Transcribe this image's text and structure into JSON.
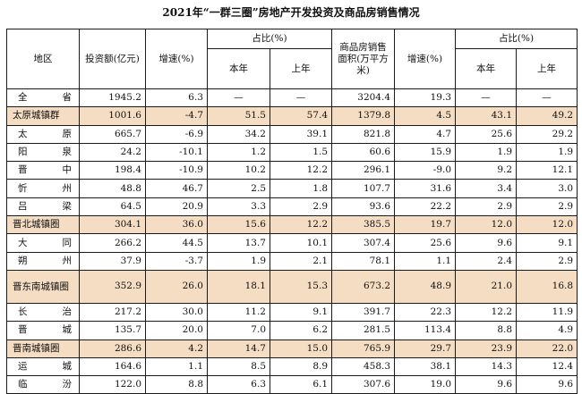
{
  "title": "2021年“一群三圈”房地产开发投资及商品房销售情况",
  "headers": {
    "region": "地区",
    "investment": "投资额(亿元)",
    "growth": "增速(%)",
    "share": "占比(%)",
    "this_year": "本年",
    "last_year": "上年",
    "sales_area": "商品房销售面积(万平方米)",
    "sales_growth": "增速(%)",
    "share2": "占比(%)",
    "this_year2": "本年",
    "last_year2": "上年"
  },
  "colors": {
    "cluster_highlight": "#f5ddc4",
    "border": "#1a1a1a"
  },
  "rows": [
    {
      "name": "全省",
      "inv": "1945.2",
      "inv_g": "6.3",
      "s1": "—",
      "s2": "—",
      "area": "3204.4",
      "area_g": "19.3",
      "s3": "—",
      "s4": "—",
      "cluster": false
    },
    {
      "name": "太原城镇群",
      "inv": "1001.6",
      "inv_g": "-4.7",
      "s1": "51.5",
      "s2": "57.4",
      "area": "1379.8",
      "area_g": "4.5",
      "s3": "43.1",
      "s4": "49.2",
      "cluster": true
    },
    {
      "name": "太原",
      "inv": "665.7",
      "inv_g": "-6.9",
      "s1": "34.2",
      "s2": "39.1",
      "area": "821.8",
      "area_g": "4.7",
      "s3": "25.6",
      "s4": "29.2",
      "cluster": false
    },
    {
      "name": "阳泉",
      "inv": "24.2",
      "inv_g": "-10.1",
      "s1": "1.2",
      "s2": "1.5",
      "area": "60.6",
      "area_g": "15.9",
      "s3": "1.9",
      "s4": "1.9",
      "cluster": false
    },
    {
      "name": "晋中",
      "inv": "198.4",
      "inv_g": "-10.9",
      "s1": "10.2",
      "s2": "12.2",
      "area": "296.1",
      "area_g": "-9.0",
      "s3": "9.2",
      "s4": "12.1",
      "cluster": false
    },
    {
      "name": "忻州",
      "inv": "48.8",
      "inv_g": "46.7",
      "s1": "2.5",
      "s2": "1.8",
      "area": "107.7",
      "area_g": "31.6",
      "s3": "3.4",
      "s4": "3.0",
      "cluster": false
    },
    {
      "name": "吕梁",
      "inv": "64.5",
      "inv_g": "20.9",
      "s1": "3.3",
      "s2": "2.9",
      "area": "93.6",
      "area_g": "22.2",
      "s3": "2.9",
      "s4": "2.9",
      "cluster": false
    },
    {
      "name": "晋北城镇圈",
      "inv": "304.1",
      "inv_g": "36.0",
      "s1": "15.6",
      "s2": "12.2",
      "area": "385.5",
      "area_g": "19.7",
      "s3": "12.0",
      "s4": "12.0",
      "cluster": true
    },
    {
      "name": "大同",
      "inv": "266.2",
      "inv_g": "44.5",
      "s1": "13.7",
      "s2": "10.1",
      "area": "307.4",
      "area_g": "25.6",
      "s3": "9.6",
      "s4": "9.1",
      "cluster": false
    },
    {
      "name": "朔州",
      "inv": "37.9",
      "inv_g": "-3.7",
      "s1": "1.9",
      "s2": "2.1",
      "area": "78.1",
      "area_g": "1.1",
      "s3": "2.4",
      "s4": "2.9",
      "cluster": false
    },
    {
      "name": "晋东南城镇圈",
      "inv": "352.9",
      "inv_g": "26.0",
      "s1": "18.1",
      "s2": "15.3",
      "area": "673.2",
      "area_g": "48.9",
      "s3": "21.0",
      "s4": "16.8",
      "cluster": true,
      "tall": true
    },
    {
      "name": "长治",
      "inv": "217.2",
      "inv_g": "30.0",
      "s1": "11.2",
      "s2": "9.1",
      "area": "391.7",
      "area_g": "22.3",
      "s3": "12.2",
      "s4": "11.9",
      "cluster": false
    },
    {
      "name": "晋城",
      "inv": "135.7",
      "inv_g": "20.0",
      "s1": "7.0",
      "s2": "6.2",
      "area": "281.5",
      "area_g": "113.4",
      "s3": "8.8",
      "s4": "4.9",
      "cluster": false
    },
    {
      "name": "晋南城镇圈",
      "inv": "286.6",
      "inv_g": "4.2",
      "s1": "14.7",
      "s2": "15.0",
      "area": "765.9",
      "area_g": "29.7",
      "s3": "23.9",
      "s4": "22.0",
      "cluster": true
    },
    {
      "name": "运城",
      "inv": "164.6",
      "inv_g": "1.1",
      "s1": "8.5",
      "s2": "8.9",
      "area": "458.3",
      "area_g": "38.1",
      "s3": "14.3",
      "s4": "12.4",
      "cluster": false
    },
    {
      "name": "临汾",
      "inv": "122.0",
      "inv_g": "8.8",
      "s1": "6.3",
      "s2": "6.1",
      "area": "307.6",
      "area_g": "19.0",
      "s3": "9.6",
      "s4": "9.6",
      "cluster": false
    }
  ]
}
